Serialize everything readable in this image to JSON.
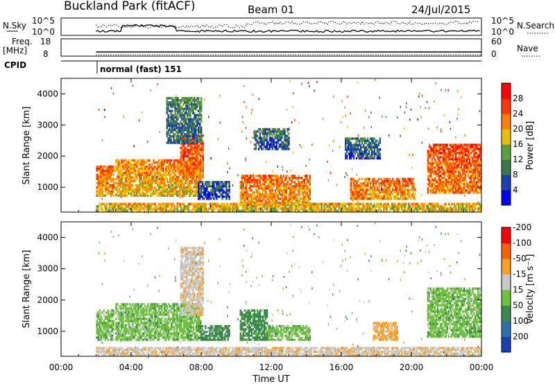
{
  "header": {
    "station": "Buckland Park (fitACF)",
    "beam": "Beam 01",
    "date": "24/Jul/2015"
  },
  "panels": {
    "noise": {
      "left_label": "N.Sky",
      "right_label": "N.Search",
      "left_ticks": [
        "10^5",
        "10^0"
      ],
      "right_ticks": [
        "10^5",
        "10^0"
      ]
    },
    "freq": {
      "left_label_line1": "Freq.",
      "left_label_line2": "[MHz]",
      "right_label": "Nave",
      "left_ticks": [
        "18",
        "8"
      ],
      "right_ticks": [
        "60",
        "0"
      ]
    },
    "cpid": {
      "label": "CPID",
      "text": "normal (fast) 151"
    }
  },
  "chart_data": [
    {
      "type": "heatmap",
      "title": "",
      "ylabel": "Slant Range [km]",
      "xlabel": "",
      "ylim": [
        200,
        4500
      ],
      "yticks": [
        "1000",
        "2000",
        "3000",
        "4000"
      ],
      "colorbar": {
        "label": "Power [dB]",
        "ticks": [
          "4",
          "8",
          "12",
          "16",
          "20",
          "24",
          "28"
        ],
        "colors": [
          "#0000ff",
          "#1c3fb2",
          "#3a7a4a",
          "#5aa040",
          "#e8c000",
          "#ff8000",
          "#ff3a00",
          "#ff0000"
        ]
      },
      "regions": [
        {
          "t0": 2.0,
          "t1": 3.0,
          "r0": 700,
          "r1": 1700,
          "level": 24
        },
        {
          "t0": 3.1,
          "t1": 8.0,
          "r0": 700,
          "r1": 1900,
          "level": 22
        },
        {
          "t0": 6.8,
          "t1": 8.1,
          "r0": 1300,
          "r1": 2700,
          "level": 26
        },
        {
          "t0": 6.0,
          "t1": 8.0,
          "r0": 2400,
          "r1": 3900,
          "level": 12
        },
        {
          "t0": 7.8,
          "t1": 9.6,
          "r0": 600,
          "r1": 1200,
          "level": 8
        },
        {
          "t0": 10.2,
          "t1": 14.2,
          "r0": 400,
          "r1": 1400,
          "level": 24
        },
        {
          "t0": 16.5,
          "t1": 20.2,
          "r0": 600,
          "r1": 1300,
          "level": 24
        },
        {
          "t0": 20.9,
          "t1": 24.0,
          "r0": 800,
          "r1": 2400,
          "level": 26
        },
        {
          "t0": 11.0,
          "t1": 13.0,
          "r0": 2200,
          "r1": 2900,
          "level": 10
        },
        {
          "t0": 16.2,
          "t1": 18.2,
          "r0": 1900,
          "r1": 2600,
          "level": 10
        },
        {
          "t0": 2.0,
          "t1": 24.0,
          "r0": 200,
          "r1": 500,
          "level": 20
        }
      ]
    },
    {
      "type": "heatmap",
      "title": "",
      "ylabel": "Slant Range [km]",
      "xlabel": "Time UT",
      "ylim": [
        200,
        4500
      ],
      "yticks": [
        "1000",
        "2000",
        "3000",
        "4000"
      ],
      "xticks": [
        "00:00",
        "04:00",
        "08:00",
        "12:00",
        "16:00",
        "20:00",
        "00:00"
      ],
      "xlim_hours": [
        0,
        24
      ],
      "colorbar": {
        "label": "Velocity [m s⁻¹]",
        "ticks": [
          "200",
          "100",
          "50",
          "15",
          "-15",
          "-50",
          "-100",
          "-200"
        ],
        "colors": [
          "#1c3fb2",
          "#2f6fae",
          "#3a8a50",
          "#70c040",
          "#c8c8c8",
          "#ffa020",
          "#ff6000",
          "#ff0000"
        ]
      },
      "regions": [
        {
          "t0": 2.0,
          "t1": 3.0,
          "r0": 700,
          "r1": 1700,
          "velocity": 0
        },
        {
          "t0": 3.1,
          "t1": 8.0,
          "r0": 700,
          "r1": 1900,
          "velocity": 0
        },
        {
          "t0": 6.8,
          "t1": 8.1,
          "r0": 1500,
          "r1": 3700,
          "velocity": -40
        },
        {
          "t0": 7.8,
          "t1": 9.6,
          "r0": 700,
          "r1": 1200,
          "velocity": 30
        },
        {
          "t0": 10.2,
          "t1": 11.8,
          "r0": 700,
          "r1": 1700,
          "velocity": 30
        },
        {
          "t0": 11.8,
          "t1": 14.2,
          "r0": 700,
          "r1": 1200,
          "velocity": 0
        },
        {
          "t0": 17.8,
          "t1": 19.2,
          "r0": 700,
          "r1": 1300,
          "velocity": -60
        },
        {
          "t0": 20.9,
          "t1": 24.0,
          "r0": 800,
          "r1": 2400,
          "velocity": 0
        },
        {
          "t0": 2.0,
          "t1": 24.0,
          "r0": 200,
          "r1": 500,
          "velocity": -40
        }
      ]
    }
  ]
}
